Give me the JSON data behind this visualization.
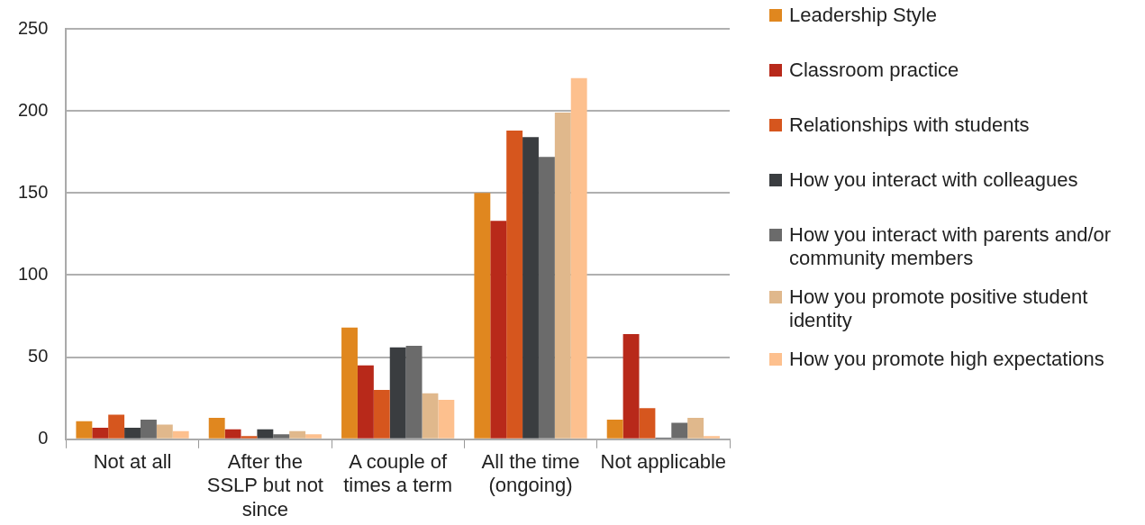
{
  "chart_data": {
    "type": "bar",
    "categories": [
      "Not at all",
      "After the SSLP but not since",
      "A couple of times a term",
      "All the time (ongoing)",
      "Not applicable"
    ],
    "series": [
      {
        "name": "Leadership Style",
        "color": "#e0871f",
        "values": [
          11,
          13,
          68,
          150,
          12
        ]
      },
      {
        "name": "Classroom practice",
        "color": "#b8291a",
        "values": [
          7,
          6,
          45,
          133,
          64
        ]
      },
      {
        "name": "Relationships with students",
        "color": "#d6561e",
        "values": [
          15,
          2,
          30,
          188,
          19
        ]
      },
      {
        "name": "How you interact with colleagues",
        "color": "#3a3d40",
        "values": [
          7,
          6,
          56,
          184,
          1
        ]
      },
      {
        "name": "How you interact with parents and/or community members",
        "color": "#6b6b6b",
        "values": [
          12,
          3,
          57,
          172,
          10
        ]
      },
      {
        "name": "How you promote positive student identity",
        "color": "#e0b88c",
        "values": [
          9,
          5,
          28,
          199,
          13
        ]
      },
      {
        "name": "How you promote high expectations",
        "color": "#fdc08e",
        "values": [
          5,
          3,
          24,
          220,
          2
        ]
      }
    ],
    "ylim": [
      0,
      250
    ],
    "yticks": [
      0,
      50,
      100,
      150,
      200,
      250
    ],
    "grid": "y",
    "legend": "right"
  }
}
